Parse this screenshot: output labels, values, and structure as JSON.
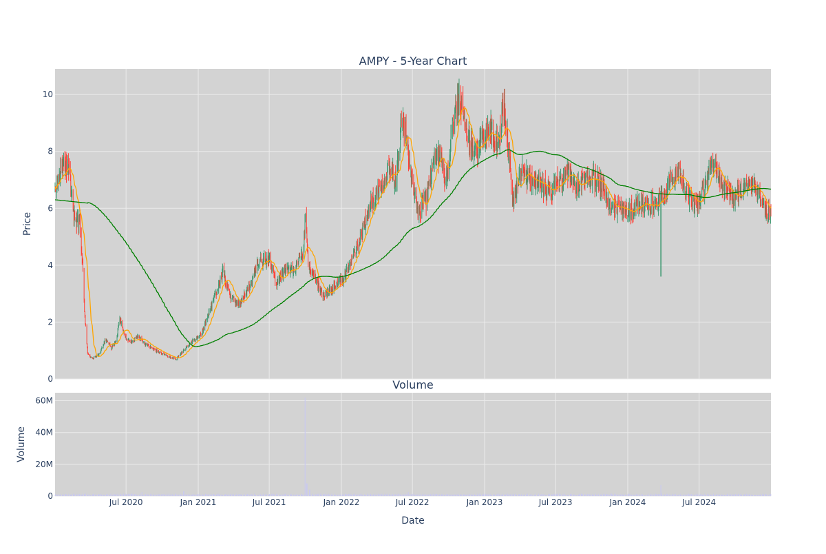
{
  "chart_data": {
    "type": "candlestick",
    "title": "AMPY - 5-Year Chart",
    "volume_title": "Volume",
    "xlabel": "Date",
    "price_ylabel": "Price",
    "volume_ylabel": "Volume",
    "x_range": [
      "2020-01-02",
      "2024-12-31"
    ],
    "x_ticks": [
      {
        "date": "2020-07-01",
        "label": "Jul 2020"
      },
      {
        "date": "2021-01-01",
        "label": "Jan 2021"
      },
      {
        "date": "2021-07-01",
        "label": "Jul 2021"
      },
      {
        "date": "2022-01-01",
        "label": "Jan 2022"
      },
      {
        "date": "2022-07-01",
        "label": "Jul 2022"
      },
      {
        "date": "2023-01-01",
        "label": "Jan 2023"
      },
      {
        "date": "2023-07-01",
        "label": "Jul 2023"
      },
      {
        "date": "2024-01-01",
        "label": "Jan 2024"
      },
      {
        "date": "2024-07-01",
        "label": "Jul 2024"
      }
    ],
    "price_ylim": [
      0,
      10.9
    ],
    "price_y_ticks": [
      {
        "value": 0,
        "label": "0"
      },
      {
        "value": 2,
        "label": "2"
      },
      {
        "value": 4,
        "label": "4"
      },
      {
        "value": 6,
        "label": "6"
      },
      {
        "value": 8,
        "label": "8"
      },
      {
        "value": 10,
        "label": "10"
      }
    ],
    "volume_ylim": [
      0,
      65000000
    ],
    "volume_y_ticks": [
      {
        "value": 0,
        "label": "0"
      },
      {
        "value": 20000000,
        "label": "20M"
      },
      {
        "value": 40000000,
        "label": "40M"
      },
      {
        "value": 60000000,
        "label": "60M"
      }
    ],
    "price_close_keypoints": [
      [
        "2020-01-02",
        6.9
      ],
      [
        "2020-01-20",
        7.3
      ],
      [
        "2020-02-05",
        7.4
      ],
      [
        "2020-02-20",
        5.6
      ],
      [
        "2020-03-05",
        5.5
      ],
      [
        "2020-03-12",
        4.0
      ],
      [
        "2020-03-18",
        2.2
      ],
      [
        "2020-03-25",
        0.9
      ],
      [
        "2020-04-05",
        0.7
      ],
      [
        "2020-04-25",
        0.9
      ],
      [
        "2020-05-10",
        1.4
      ],
      [
        "2020-05-25",
        1.1
      ],
      [
        "2020-06-05",
        1.3
      ],
      [
        "2020-06-15",
        2.1
      ],
      [
        "2020-07-01",
        1.4
      ],
      [
        "2020-07-15",
        1.3
      ],
      [
        "2020-08-01",
        1.5
      ],
      [
        "2020-08-20",
        1.2
      ],
      [
        "2020-09-15",
        1.0
      ],
      [
        "2020-10-15",
        0.8
      ],
      [
        "2020-11-05",
        0.7
      ],
      [
        "2020-11-25",
        1.0
      ],
      [
        "2020-12-15",
        1.3
      ],
      [
        "2021-01-10",
        1.6
      ],
      [
        "2021-01-25",
        2.2
      ],
      [
        "2021-02-15",
        3.0
      ],
      [
        "2021-03-05",
        3.8
      ],
      [
        "2021-03-20",
        3.0
      ],
      [
        "2021-04-15",
        2.6
      ],
      [
        "2021-05-10",
        3.2
      ],
      [
        "2021-06-05",
        4.1
      ],
      [
        "2021-07-01",
        4.2
      ],
      [
        "2021-07-20",
        3.3
      ],
      [
        "2021-08-10",
        3.8
      ],
      [
        "2021-09-05",
        3.9
      ],
      [
        "2021-09-25",
        4.4
      ],
      [
        "2021-10-01",
        5.6
      ],
      [
        "2021-10-10",
        3.9
      ],
      [
        "2021-10-25",
        3.6
      ],
      [
        "2021-11-15",
        2.9
      ],
      [
        "2021-12-10",
        3.2
      ],
      [
        "2022-01-05",
        3.5
      ],
      [
        "2022-01-25",
        4.1
      ],
      [
        "2022-02-15",
        4.8
      ],
      [
        "2022-03-05",
        5.7
      ],
      [
        "2022-03-20",
        6.2
      ],
      [
        "2022-04-10",
        6.8
      ],
      [
        "2022-05-05",
        7.5
      ],
      [
        "2022-05-20",
        7.0
      ],
      [
        "2022-06-05",
        9.3
      ],
      [
        "2022-06-15",
        8.5
      ],
      [
        "2022-06-28",
        7.1
      ],
      [
        "2022-07-15",
        5.9
      ],
      [
        "2022-08-05",
        6.3
      ],
      [
        "2022-08-25",
        7.6
      ],
      [
        "2022-09-10",
        8.0
      ],
      [
        "2022-09-25",
        6.8
      ],
      [
        "2022-10-10",
        8.8
      ],
      [
        "2022-10-28",
        9.9
      ],
      [
        "2022-11-15",
        8.7
      ],
      [
        "2022-12-05",
        7.9
      ],
      [
        "2022-12-25",
        8.4
      ],
      [
        "2023-01-15",
        8.8
      ],
      [
        "2023-02-05",
        8.1
      ],
      [
        "2023-02-20",
        9.8
      ],
      [
        "2023-03-05",
        7.7
      ],
      [
        "2023-03-15",
        6.3
      ],
      [
        "2023-04-05",
        7.3
      ],
      [
        "2023-05-01",
        7.0
      ],
      [
        "2023-05-25",
        6.9
      ],
      [
        "2023-06-15",
        6.5
      ],
      [
        "2023-07-10",
        6.9
      ],
      [
        "2023-08-05",
        7.3
      ],
      [
        "2023-08-25",
        6.6
      ],
      [
        "2023-09-15",
        7.1
      ],
      [
        "2023-10-10",
        7.0
      ],
      [
        "2023-11-05",
        6.7
      ],
      [
        "2023-11-15",
        6.1
      ],
      [
        "2023-12-05",
        6.0
      ],
      [
        "2024-01-05",
        5.9
      ],
      [
        "2024-02-05",
        6.2
      ],
      [
        "2024-03-05",
        6.1
      ],
      [
        "2024-04-01",
        6.4
      ],
      [
        "2024-04-20",
        7.1
      ],
      [
        "2024-05-10",
        7.3
      ],
      [
        "2024-05-30",
        6.6
      ],
      [
        "2024-06-15",
        6.1
      ],
      [
        "2024-07-05",
        6.3
      ],
      [
        "2024-07-25",
        7.3
      ],
      [
        "2024-08-05",
        7.8
      ],
      [
        "2024-08-20",
        7.0
      ],
      [
        "2024-09-10",
        6.7
      ],
      [
        "2024-09-25",
        6.3
      ],
      [
        "2024-10-15",
        6.6
      ],
      [
        "2024-11-10",
        6.8
      ],
      [
        "2024-12-01",
        6.6
      ],
      [
        "2024-12-15",
        5.9
      ],
      [
        "2024-12-31",
        5.8
      ]
    ],
    "price_spikes": [
      {
        "date": "2021-10-01",
        "high": 5.8
      },
      {
        "date": "2022-10-25",
        "high": 10.4
      },
      {
        "date": "2023-02-20",
        "high": 10.2
      },
      {
        "date": "2024-03-25",
        "low": 3.6
      }
    ],
    "ma_short_color": "#ffa500",
    "ma_long_color": "#008000",
    "up_color": "#3d9970",
    "down_color": "#ff4136",
    "volume_color": "#c9c9f0",
    "volume_base": 1000000,
    "volume_spikes": [
      {
        "date": "2020-08-10",
        "value": 2500000
      },
      {
        "date": "2020-11-25",
        "value": 3000000
      },
      {
        "date": "2021-10-01",
        "value": 62000000
      },
      {
        "date": "2021-10-05",
        "value": 8000000
      },
      {
        "date": "2021-10-12",
        "value": 4000000
      },
      {
        "date": "2022-06-20",
        "value": 2500000
      },
      {
        "date": "2024-03-25",
        "value": 7000000
      }
    ]
  }
}
